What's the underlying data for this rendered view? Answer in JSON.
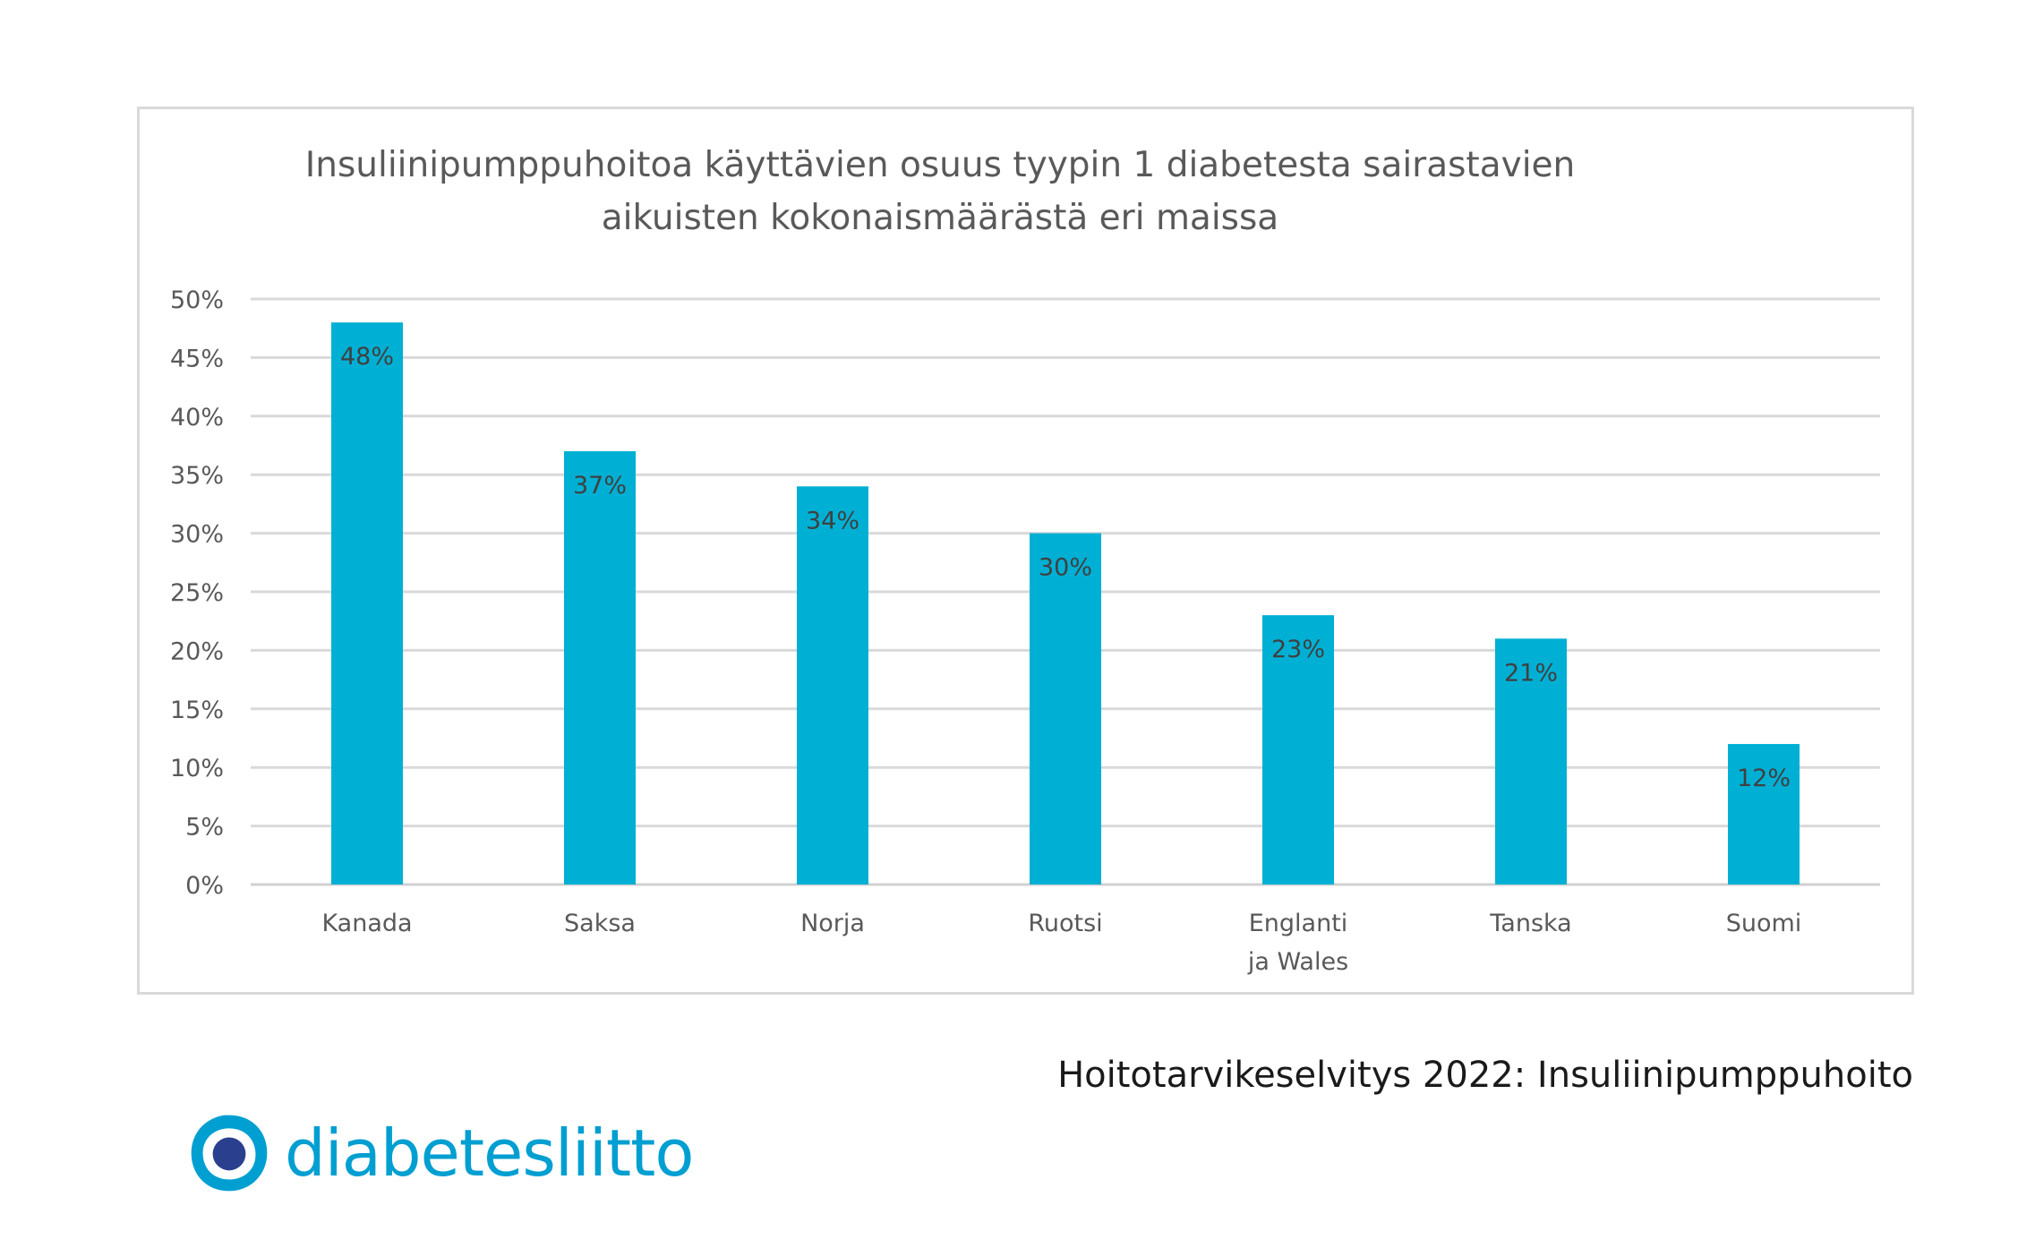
{
  "chart_data": {
    "type": "bar",
    "title": [
      "Insuliinipumppuhoitoa käyttävien osuus tyypin 1 diabetesta sairastavien",
      "aikuisten kokonaismäärästä eri maissa"
    ],
    "categories": [
      [
        "Kanada"
      ],
      [
        "Saksa"
      ],
      [
        "Norja"
      ],
      [
        "Ruotsi"
      ],
      [
        "Englanti",
        "ja Wales"
      ],
      [
        "Tanska"
      ],
      [
        "Suomi"
      ]
    ],
    "values": [
      48,
      37,
      34,
      30,
      23,
      21,
      12
    ],
    "data_labels": [
      "48%",
      "37%",
      "34%",
      "30%",
      "23%",
      "21%",
      "12%"
    ],
    "y_ticks": [
      0,
      5,
      10,
      15,
      20,
      25,
      30,
      35,
      40,
      45,
      50
    ],
    "y_tick_labels": [
      "0%",
      "5%",
      "10%",
      "15%",
      "20%",
      "25%",
      "30%",
      "35%",
      "40%",
      "45%",
      "50%"
    ],
    "ylim": [
      0,
      50
    ],
    "grid": true,
    "legend": "none",
    "bar_color": "#00b0d4"
  },
  "source": "Hoitotarvikeselvitys 2022: Insuliinipumppuhoito",
  "logo": {
    "text": "diabetesliitto",
    "icon": "diabetesliitto-logo-icon",
    "color": "#009fd1"
  }
}
